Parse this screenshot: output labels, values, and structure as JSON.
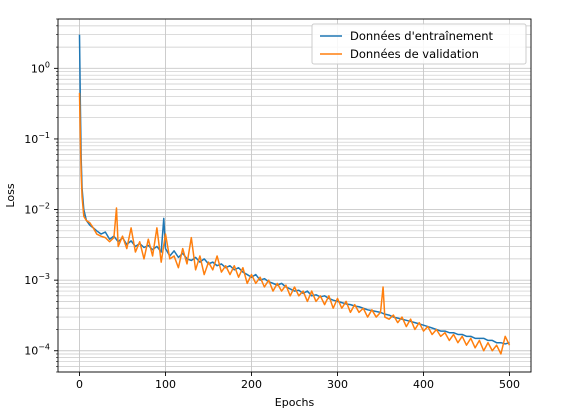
{
  "chart_data": {
    "type": "line",
    "xlabel": "Epochs",
    "ylabel": "Loss",
    "xlim": [
      -25,
      525
    ],
    "ylim": [
      5e-05,
      5
    ],
    "yscale": "log",
    "grid": "major and minor",
    "legend_position": "top-right",
    "x_ticks": [
      0,
      100,
      200,
      300,
      400,
      500
    ],
    "y_ticks": [
      {
        "value": 0.0001,
        "base": "10",
        "exp": "−4"
      },
      {
        "value": 0.001,
        "base": "10",
        "exp": "−3"
      },
      {
        "value": 0.01,
        "base": "10",
        "exp": "−2"
      },
      {
        "value": 0.1,
        "base": "10",
        "exp": "−1"
      },
      {
        "value": 1,
        "base": "10",
        "exp": "0"
      }
    ],
    "series": [
      {
        "name": "Données d'entraînement",
        "color": "#1f77b4",
        "x": [
          0,
          1,
          2,
          3,
          5,
          8,
          12,
          16,
          20,
          25,
          30,
          35,
          40,
          45,
          50,
          55,
          60,
          65,
          70,
          75,
          80,
          85,
          90,
          95,
          98,
          100,
          105,
          110,
          115,
          120,
          125,
          130,
          135,
          140,
          145,
          150,
          155,
          160,
          165,
          170,
          175,
          180,
          185,
          190,
          195,
          200,
          205,
          210,
          215,
          220,
          225,
          230,
          235,
          240,
          245,
          250,
          255,
          260,
          265,
          270,
          275,
          280,
          285,
          290,
          295,
          300,
          305,
          310,
          315,
          320,
          325,
          330,
          335,
          340,
          345,
          350,
          355,
          360,
          365,
          370,
          375,
          380,
          385,
          390,
          395,
          400,
          405,
          410,
          415,
          420,
          425,
          430,
          435,
          440,
          445,
          450,
          455,
          460,
          465,
          470,
          475,
          480,
          485,
          490,
          495,
          500
        ],
        "y": [
          3.0,
          0.3,
          0.05,
          0.02,
          0.01,
          0.007,
          0.006,
          0.0055,
          0.005,
          0.0045,
          0.0048,
          0.0038,
          0.0042,
          0.0035,
          0.004,
          0.0032,
          0.0036,
          0.003,
          0.0033,
          0.0029,
          0.0031,
          0.0027,
          0.003,
          0.0025,
          0.0075,
          0.0028,
          0.0022,
          0.0026,
          0.0021,
          0.0024,
          0.002,
          0.0019,
          0.0021,
          0.0018,
          0.002,
          0.0017,
          0.0018,
          0.0016,
          0.0017,
          0.0015,
          0.0016,
          0.0014,
          0.0015,
          0.0013,
          0.0012,
          0.0011,
          0.0012,
          0.001,
          0.00105,
          0.00095,
          0.0009,
          0.00085,
          0.0009,
          0.0008,
          0.00075,
          0.0007,
          0.00072,
          0.00065,
          0.0007,
          0.0006,
          0.00062,
          0.00058,
          0.0006,
          0.00055,
          0.00052,
          0.0005,
          0.00048,
          0.00046,
          0.00045,
          0.00043,
          0.00042,
          0.0004,
          0.00038,
          0.00037,
          0.00036,
          0.00035,
          0.00033,
          0.00032,
          0.0003,
          0.00029,
          0.00028,
          0.00027,
          0.00026,
          0.00025,
          0.00024,
          0.00023,
          0.00022,
          0.00021,
          0.0002,
          0.00019,
          0.00019,
          0.00018,
          0.00018,
          0.00017,
          0.00017,
          0.00016,
          0.00016,
          0.00015,
          0.00015,
          0.00015,
          0.00014,
          0.00014,
          0.00013,
          0.00013,
          0.000125,
          0.00013
        ]
      },
      {
        "name": "Données de validation",
        "color": "#ff7f0e",
        "x": [
          0,
          1,
          2,
          3,
          5,
          8,
          12,
          16,
          20,
          25,
          30,
          35,
          40,
          43,
          45,
          50,
          55,
          60,
          65,
          70,
          75,
          80,
          85,
          90,
          95,
          100,
          105,
          110,
          115,
          120,
          125,
          130,
          135,
          140,
          145,
          150,
          155,
          160,
          165,
          170,
          175,
          180,
          185,
          190,
          195,
          200,
          205,
          210,
          215,
          220,
          225,
          230,
          235,
          240,
          245,
          250,
          255,
          260,
          265,
          270,
          275,
          280,
          285,
          290,
          295,
          300,
          305,
          310,
          315,
          320,
          325,
          330,
          335,
          340,
          345,
          350,
          353,
          355,
          360,
          365,
          370,
          375,
          380,
          385,
          390,
          395,
          400,
          405,
          410,
          415,
          420,
          425,
          430,
          435,
          440,
          445,
          450,
          455,
          460,
          465,
          470,
          475,
          480,
          485,
          490,
          495,
          500
        ],
        "y": [
          0.45,
          0.1,
          0.03,
          0.015,
          0.008,
          0.007,
          0.0065,
          0.0055,
          0.0045,
          0.0042,
          0.004,
          0.0035,
          0.004,
          0.0105,
          0.003,
          0.0042,
          0.0028,
          0.0055,
          0.0025,
          0.0035,
          0.002,
          0.0038,
          0.0022,
          0.0055,
          0.0018,
          0.0045,
          0.002,
          0.0022,
          0.0015,
          0.0028,
          0.0017,
          0.004,
          0.0014,
          0.0022,
          0.0012,
          0.0018,
          0.0014,
          0.0022,
          0.0013,
          0.0016,
          0.0012,
          0.0016,
          0.0011,
          0.0015,
          0.0009,
          0.0012,
          0.0009,
          0.0011,
          0.0008,
          0.001,
          0.0007,
          0.0009,
          0.0007,
          0.00085,
          0.0006,
          0.0008,
          0.0006,
          0.0007,
          0.0005,
          0.0007,
          0.0005,
          0.0006,
          0.00045,
          0.0006,
          0.0004,
          0.00055,
          0.0004,
          0.0005,
          0.00035,
          0.00045,
          0.00035,
          0.0004,
          0.0003,
          0.00038,
          0.0003,
          0.00035,
          0.0008,
          0.0003,
          0.00028,
          0.00032,
          0.00025,
          0.0003,
          0.00022,
          0.00028,
          0.0002,
          0.00025,
          0.00019,
          0.00022,
          0.00017,
          0.0002,
          0.00016,
          0.00018,
          0.00014,
          0.00017,
          0.00013,
          0.00016,
          0.00012,
          0.00015,
          0.00011,
          0.00014,
          0.0001,
          0.00013,
          0.0001,
          0.00012,
          9e-05,
          0.00016,
          0.00012
        ]
      }
    ]
  }
}
